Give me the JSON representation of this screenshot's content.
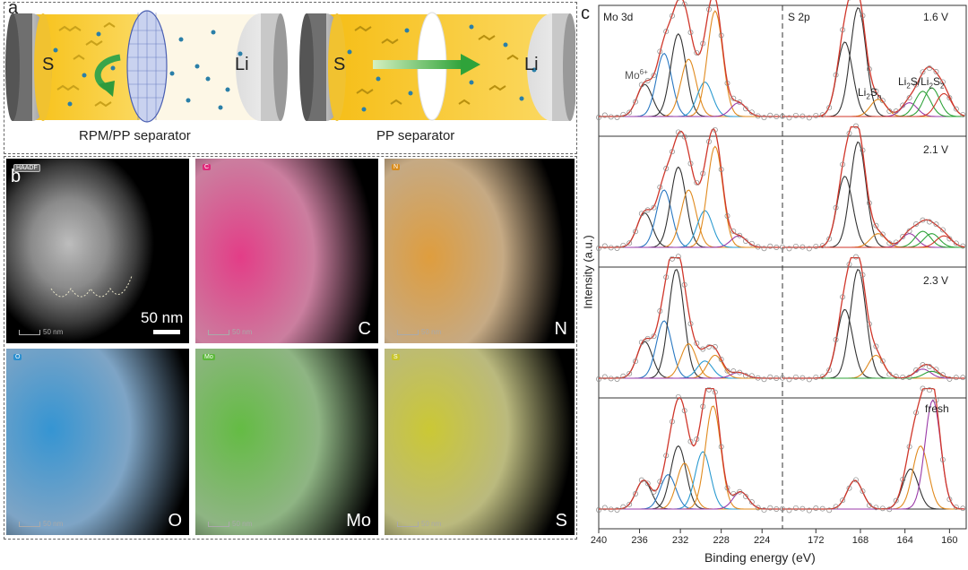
{
  "panel_a": {
    "label": "a",
    "left_cell": {
      "cathode": "S",
      "anode": "Li",
      "caption": "RPM/PP separator"
    },
    "right_cell": {
      "cathode": "S",
      "anode": "Li",
      "caption": "PP separator"
    }
  },
  "panel_b": {
    "label": "b",
    "haadf_badge": "HAADF",
    "scale_text": "50 nm",
    "small_scale": "50 nm",
    "maps": [
      {
        "element": "C",
        "badge": "C",
        "color": "#e0287a"
      },
      {
        "element": "N",
        "badge": "N",
        "color": "#d98c1c"
      },
      {
        "element": "O",
        "badge": "O",
        "color": "#2a8fd0"
      },
      {
        "element": "Mo",
        "badge": "Mo",
        "color": "#5cb83a"
      },
      {
        "element": "S",
        "badge": "S",
        "color": "#c8c52a"
      }
    ]
  },
  "panel_c": {
    "label": "c",
    "left_title": "Mo 3d",
    "right_title": "S 2p",
    "ylabel": "Intensity (a.u.)",
    "xlabel": "Binding energy (eV)",
    "mo6_label": "Mo6+",
    "mo6_base": "Mo",
    "mo6_sup": "6+",
    "li2sn": {
      "a": "Li",
      "b": "2",
      "c": "S",
      "d": "n"
    },
    "li2s": {
      "a": "Li",
      "b": "2",
      "c": "S/Li",
      "d": "2",
      "e": "S",
      "f": "2"
    },
    "left_ticks": [
      "240",
      "236",
      "232",
      "228",
      "224"
    ],
    "right_ticks": [
      "172",
      "168",
      "164",
      "160"
    ],
    "states": [
      "1.6 V",
      "2.1 V",
      "2.3 V",
      "fresh"
    ]
  },
  "chart_data": [
    {
      "type": "line",
      "title": "Mo 3d",
      "xlabel": "Binding energy (eV)",
      "ylabel": "Intensity (a.u.)",
      "xlim": [
        240,
        222
      ],
      "series": [
        {
          "name": "1.6 V",
          "peaks": [
            235.5,
            233.6,
            232.2,
            231.2,
            229.6,
            228.6,
            226.3
          ]
        },
        {
          "name": "2.1 V",
          "peaks": [
            235.5,
            233.6,
            232.2,
            231.2,
            229.6,
            228.6,
            226.3
          ]
        },
        {
          "name": "2.3 V",
          "peaks": [
            235.5,
            233.6,
            232.4,
            231.2,
            229.6,
            228.6,
            226.3
          ]
        },
        {
          "name": "fresh",
          "peaks": [
            235.6,
            233.2,
            232.2,
            231.6,
            229.8,
            228.8,
            226.1
          ]
        }
      ]
    },
    {
      "type": "line",
      "title": "S 2p",
      "xlabel": "Binding energy (eV)",
      "ylabel": "Intensity (a.u.)",
      "xlim": [
        175,
        158.5
      ],
      "series": [
        {
          "name": "1.6 V",
          "peaks": [
            169.4,
            168.2,
            166.4,
            163.6,
            162.4,
            161.6,
            160.5
          ]
        },
        {
          "name": "2.1 V",
          "peaks": [
            169.4,
            168.2,
            166.4,
            163.6,
            162.4,
            161.6,
            160.5
          ]
        },
        {
          "name": "2.3 V",
          "peaks": [
            169.4,
            168.2,
            166.6,
            162.4,
            161.6
          ]
        },
        {
          "name": "fresh",
          "peaks": [
            168.5,
            163.5,
            162.6,
            161.5
          ]
        }
      ]
    }
  ]
}
